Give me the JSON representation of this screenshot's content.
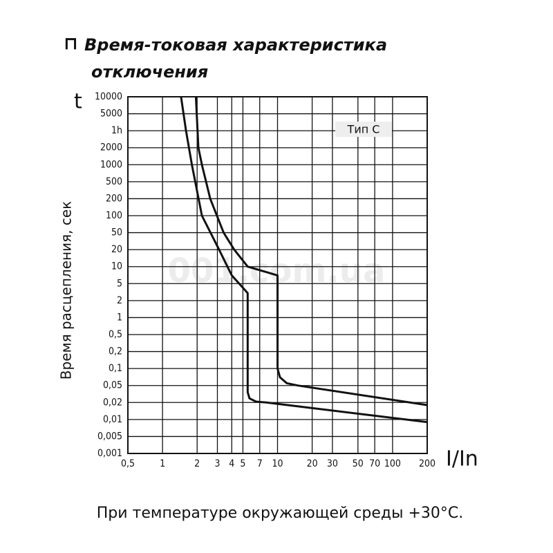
{
  "chart_data": {
    "type": "line",
    "title": [
      "Время-токовая характеристика",
      "отключения"
    ],
    "y_symbol": "t",
    "ylabel": "Время расцепления, сек",
    "xlabel": "I/In",
    "annotation": "Тип C",
    "watermark": "001.com.ua",
    "note": "При температуре окружающей среды +30°C.",
    "xscale": "log",
    "xlim": [
      0.5,
      200
    ],
    "xticks": [
      {
        "value": 0.5,
        "label": "0,5"
      },
      1,
      2,
      3,
      4,
      5,
      7,
      10,
      20,
      30,
      50,
      70,
      100,
      200
    ],
    "ylim": [
      0.001,
      10000
    ],
    "yticks": [
      10000,
      5000,
      {
        "value": 3600,
        "label": "1h"
      },
      2000,
      1000,
      500,
      200,
      100,
      50,
      20,
      10,
      5,
      2,
      1,
      {
        "value": 0.5,
        "label": "0,5"
      },
      {
        "value": 0.2,
        "label": "0,2"
      },
      {
        "value": 0.1,
        "label": "0,1"
      },
      {
        "value": 0.05,
        "label": "0,05"
      },
      {
        "value": 0.02,
        "label": "0,02"
      },
      {
        "value": 0.01,
        "label": "0,01"
      },
      {
        "value": 0.005,
        "label": "0,005"
      },
      {
        "value": 0.001,
        "label": "0,001"
      }
    ],
    "grid": true,
    "series": [
      {
        "color": "#111111",
        "x": [
          1.45,
          1.6,
          1.8,
          2.2,
          3.1,
          4,
          5.5,
          5.5,
          5.7,
          6.5,
          8,
          200
        ],
        "values": [
          10000,
          3600,
          1000,
          100,
          20,
          7,
          3,
          0.035,
          0.025,
          0.021,
          0.02,
          0.009
        ]
      },
      {
        "color": "#111111",
        "x": [
          1.95,
          2.05,
          2.2,
          2.6,
          3.4,
          4.2,
          5.5,
          10,
          10,
          10.5,
          12,
          15,
          200
        ],
        "values": [
          10000,
          2000,
          1000,
          200,
          50,
          20,
          10,
          7,
          0.1,
          0.07,
          0.055,
          0.05,
          0.018
        ]
      }
    ]
  }
}
